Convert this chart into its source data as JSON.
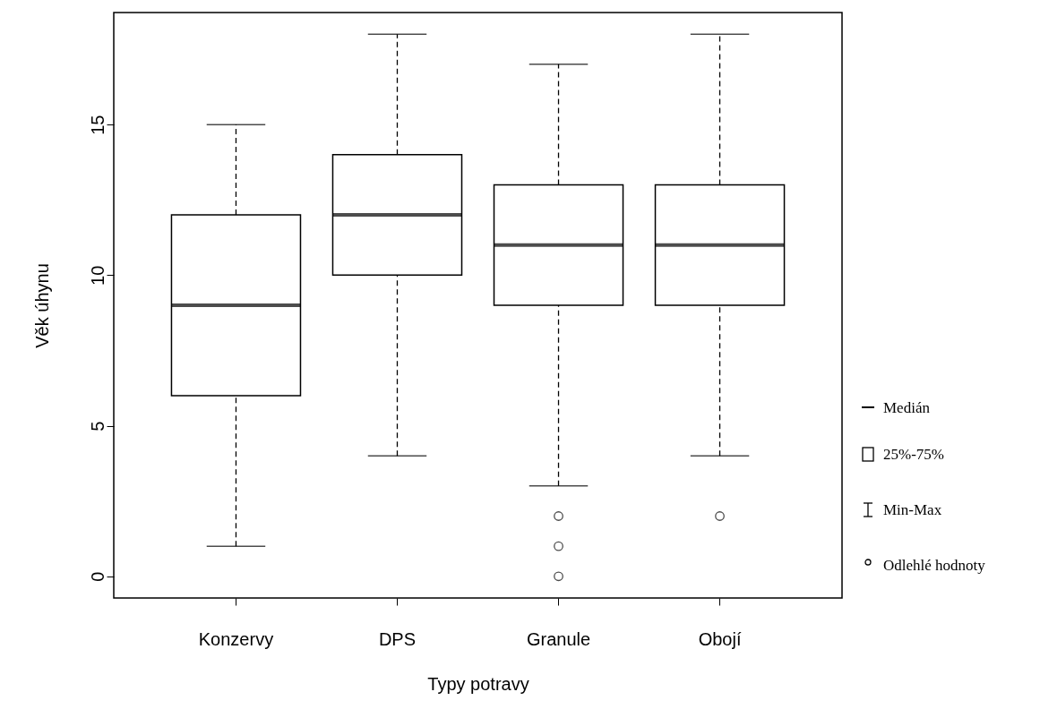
{
  "chart_data": {
    "type": "box",
    "xlabel": "Typy potravy",
    "ylabel": "Věk úhynu",
    "categories": [
      "Konzervy",
      "DPS",
      "Granule",
      "Obojí"
    ],
    "boxes": [
      {
        "low": 1,
        "q1": 6,
        "median": 9,
        "q3": 12,
        "high": 15
      },
      {
        "low": 4,
        "q1": 10,
        "median": 12,
        "q3": 14,
        "high": 18
      },
      {
        "low": 3,
        "q1": 9,
        "median": 11,
        "q3": 13,
        "high": 17,
        "outliers": [
          2,
          1,
          0
        ]
      },
      {
        "low": 4,
        "q1": 9,
        "median": 11,
        "q3": 13,
        "high": 18,
        "outliers": [
          2
        ]
      }
    ],
    "ylim": [
      -0.72,
      18.72
    ],
    "yticks": [
      0,
      5,
      10,
      15
    ],
    "grid": false,
    "annotations": [
      "Medián",
      "25%-75%",
      "Min-Max",
      "Odlehlé hodnoty"
    ]
  }
}
